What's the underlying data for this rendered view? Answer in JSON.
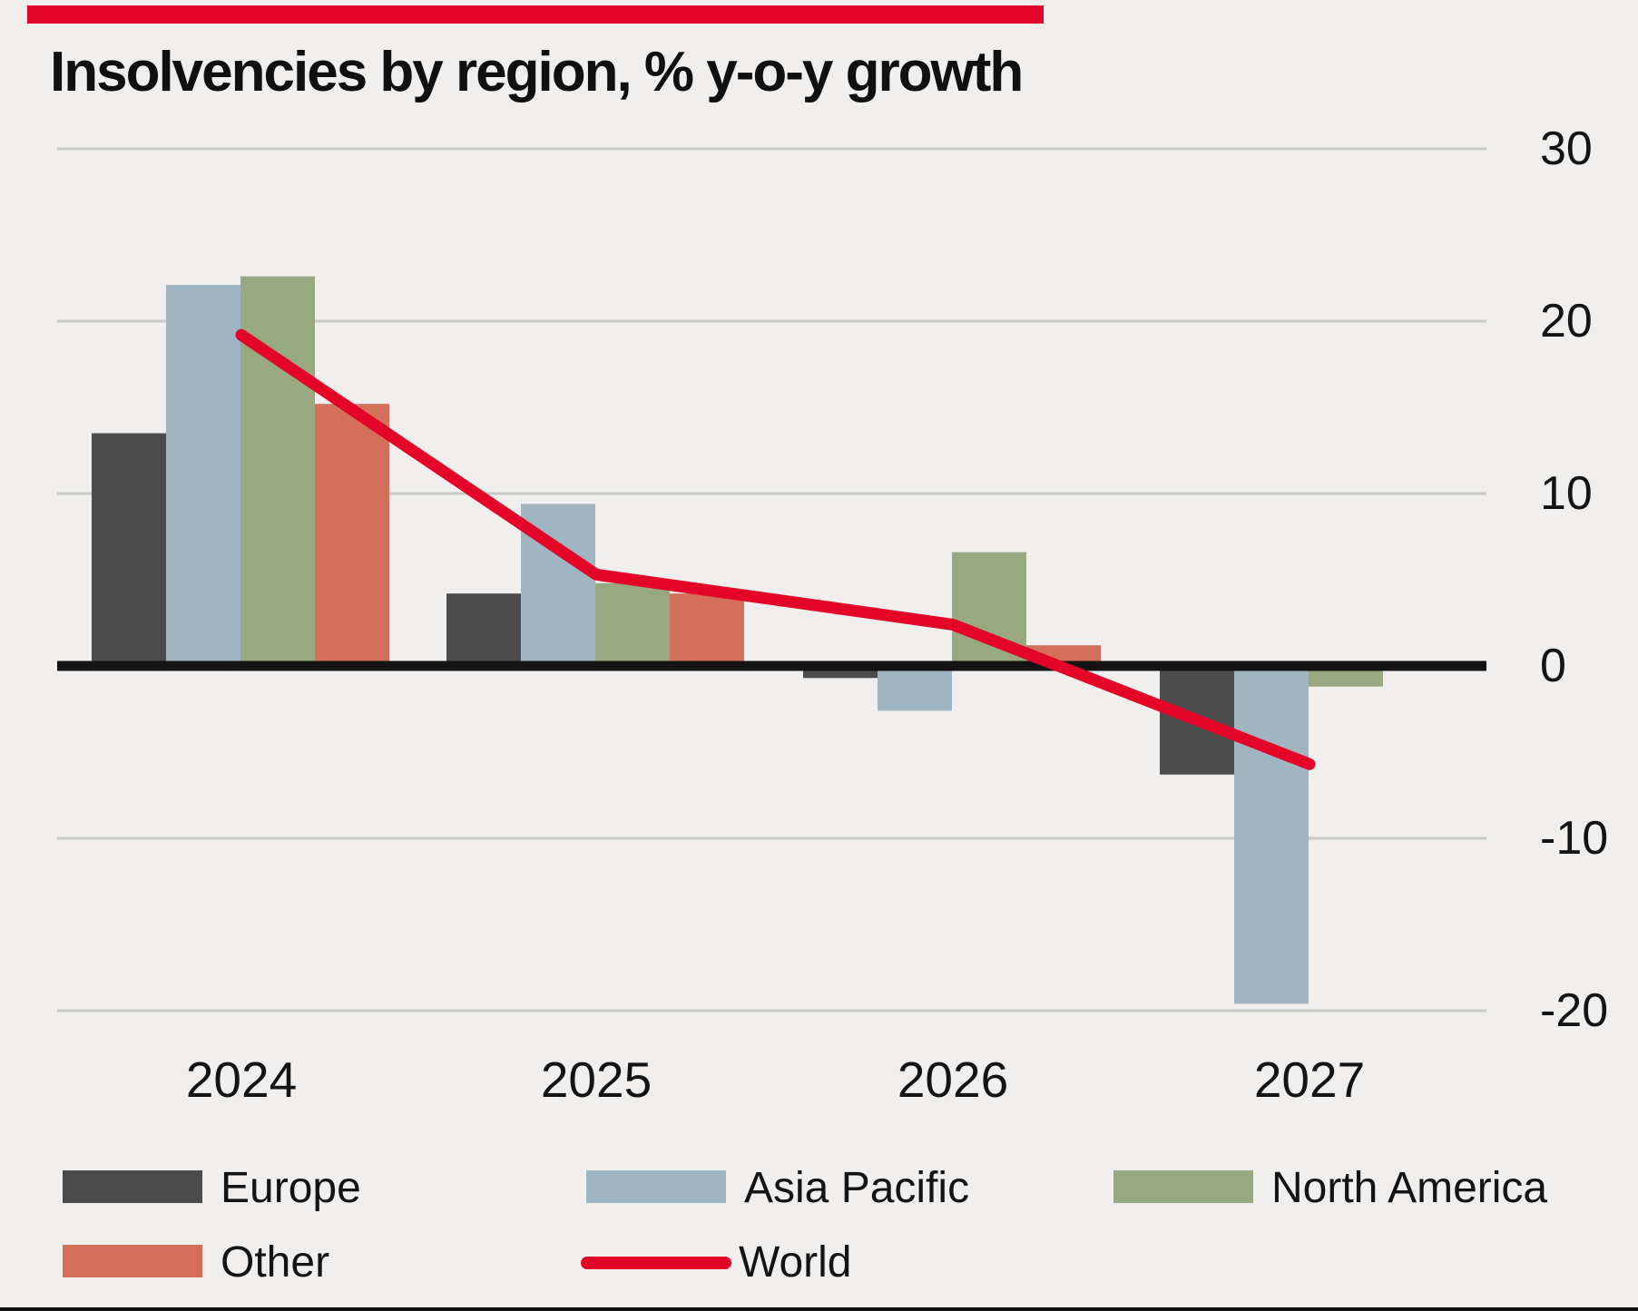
{
  "title": "Insolvencies by region, % y-o-y growth",
  "colors": {
    "background": "#f0efed",
    "accent_bar": "#e40428",
    "gridline": "#c9c8c6",
    "zero_line": "#141414",
    "text": "#141414"
  },
  "chart_data": {
    "type": "bar",
    "subtype": "grouped bars with line overlay",
    "title": "Insolvencies by region, % y-o-y growth",
    "categories": [
      "2024",
      "2025",
      "2026",
      "2027"
    ],
    "series": [
      {
        "name": "Europe",
        "type": "bar",
        "color": "#4c4c4c",
        "values": [
          13.5,
          4.2,
          -0.7,
          -6.3
        ]
      },
      {
        "name": "Asia Pacific",
        "type": "bar",
        "color": "#9fb5c2",
        "values": [
          22.1,
          9.4,
          -2.6,
          -19.6
        ]
      },
      {
        "name": "North America",
        "type": "bar",
        "color": "#98a880",
        "values": [
          22.6,
          4.8,
          6.6,
          -1.2
        ]
      },
      {
        "name": "Other",
        "type": "bar",
        "color": "#d4705a",
        "values": [
          15.2,
          4.2,
          1.2,
          0
        ]
      },
      {
        "name": "World",
        "type": "line",
        "color": "#e30428",
        "values": [
          19.2,
          5.3,
          2.4,
          -5.7
        ]
      }
    ],
    "xlabel": "",
    "ylabel": "",
    "y_ticks": [
      30,
      20,
      10,
      0,
      -10,
      -20
    ],
    "ylim": [
      -22,
      31
    ],
    "grid": "horizontal",
    "legend_position": "bottom"
  },
  "legend": {
    "row1_series_indexes": [
      0,
      1,
      2
    ],
    "row2_series_indexes": [
      3,
      4
    ]
  }
}
